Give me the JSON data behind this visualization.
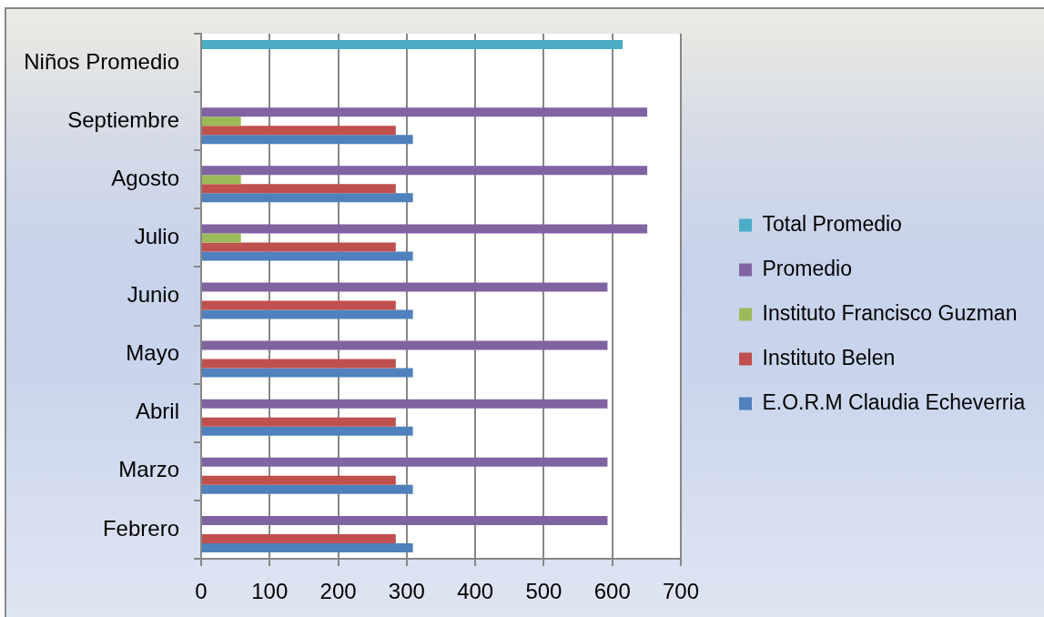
{
  "chart_data": {
    "type": "bar",
    "orientation": "horizontal",
    "categories": [
      "Niños Promedio",
      "Septiembre",
      "Agosto",
      "Julio",
      "Junio",
      "Mayo",
      "Abril",
      "Marzo",
      "Febrero"
    ],
    "series": [
      {
        "name": "Total Promedio",
        "color": "#4bacc6",
        "values": [
          615,
          null,
          null,
          null,
          null,
          null,
          null,
          null,
          null
        ]
      },
      {
        "name": "Promedio",
        "color": "#8064a2",
        "values": [
          null,
          651,
          651,
          651,
          593,
          593,
          593,
          593,
          593
        ]
      },
      {
        "name": "Instituto Francisco Guzman",
        "color": "#9bbb59",
        "values": [
          null,
          58,
          58,
          58,
          null,
          null,
          null,
          null,
          null
        ]
      },
      {
        "name": "Instituto Belen",
        "color": "#c0504d",
        "values": [
          null,
          284,
          284,
          284,
          284,
          284,
          284,
          284,
          284
        ]
      },
      {
        "name": "E.O.R.M Claudia Echeverria",
        "color": "#4f81bd",
        "values": [
          null,
          309,
          309,
          309,
          309,
          309,
          309,
          309,
          309
        ]
      }
    ],
    "xlim": [
      0,
      700
    ],
    "xticks": [
      0,
      100,
      200,
      300,
      400,
      500,
      600,
      700
    ],
    "grid": "x",
    "legend": "right"
  }
}
